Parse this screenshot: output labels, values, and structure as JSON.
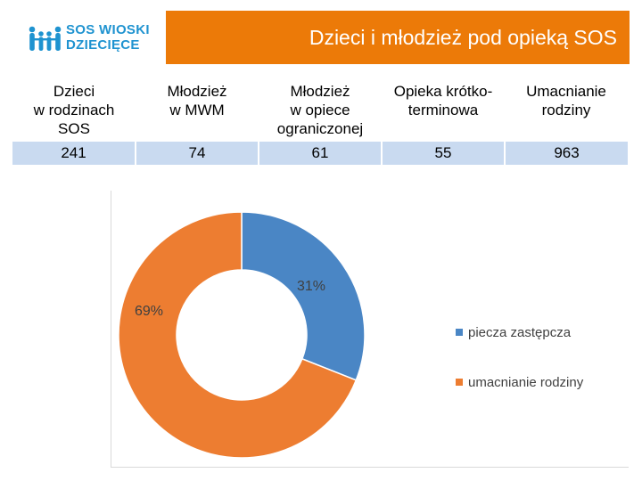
{
  "header": {
    "logo_line1": "SOS WIOSKI",
    "logo_line2": "DZIECIĘCE",
    "title": "Dzieci i młodzież pod opieką SOS"
  },
  "table": {
    "headers": [
      {
        "line1": "Dzieci",
        "line2": "w rodzinach",
        "line3": "SOS"
      },
      {
        "line1": "Młodzież",
        "line2": "w MWM",
        "line3": ""
      },
      {
        "line1": "Młodzież",
        "line2": "w opiece",
        "line3": "ograniczonej"
      },
      {
        "line1": "Opieka krótko-",
        "line2": "terminowa",
        "line3": ""
      },
      {
        "line1": "Umacnianie",
        "line2": "rodziny",
        "line3": ""
      }
    ],
    "values": [
      "241",
      "74",
      "61",
      "55",
      "963"
    ]
  },
  "chart_data": {
    "type": "pie",
    "donut": true,
    "categories": [
      "piecza zastępcza",
      "umacnianie rodziny"
    ],
    "values": [
      31,
      69
    ],
    "labels": [
      "31%",
      "69%"
    ],
    "colors": [
      "#4a86c5",
      "#ed7d31"
    ],
    "legend_position": "right"
  },
  "colors": {
    "brand_blue": "#1f93d0",
    "brand_orange": "#ec7a08",
    "table_row": "#c9daf0"
  }
}
